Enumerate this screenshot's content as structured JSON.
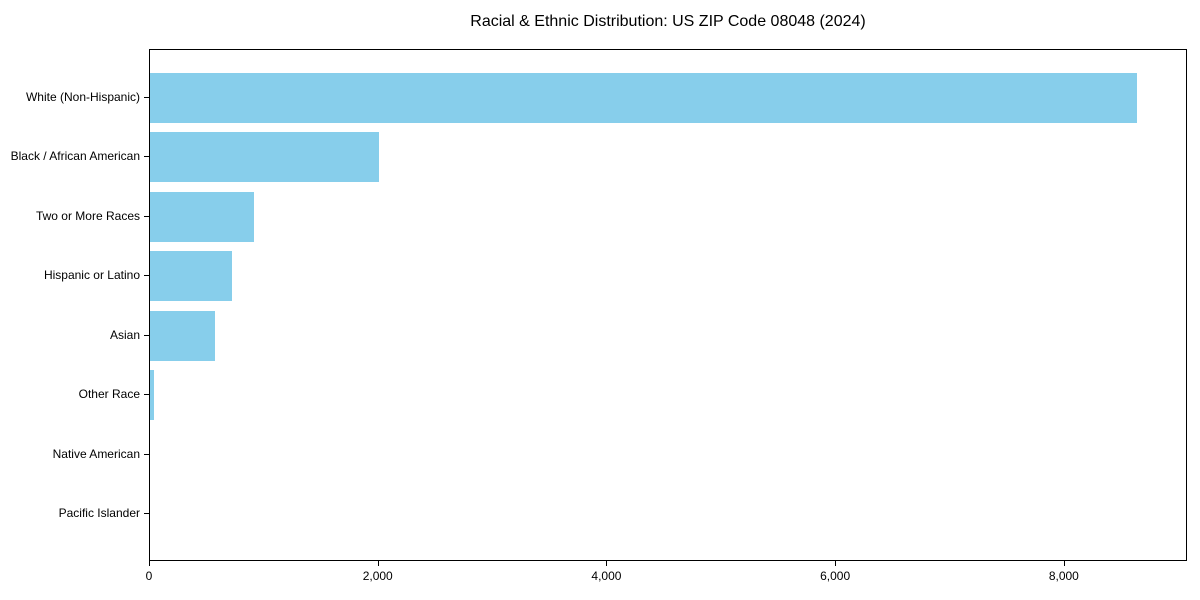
{
  "figure": {
    "background": "#ffffff"
  },
  "chart_data": {
    "type": "bar",
    "orientation": "horizontal",
    "title": "Racial & Ethnic Distribution: US ZIP Code 08048 (2024)",
    "categories": [
      "White (Non-Hispanic)",
      "Black / African American",
      "Two or More Races",
      "Hispanic or Latino",
      "Asian",
      "Other Race",
      "Native American",
      "Pacific Islander"
    ],
    "values": [
      8630,
      2005,
      910,
      715,
      570,
      35,
      0,
      0
    ],
    "xlabel": "",
    "ylabel": "",
    "xlim": [
      0,
      9077
    ],
    "x_ticks": [
      0,
      2000,
      4000,
      6000,
      8000
    ],
    "x_tick_labels": [
      "0",
      "2,000",
      "4,000",
      "6,000",
      "8,000"
    ],
    "bar_color": "#87CEEB",
    "axis_color": "#000000",
    "text_color": "#000000",
    "grid": false,
    "legend_position": "none"
  }
}
